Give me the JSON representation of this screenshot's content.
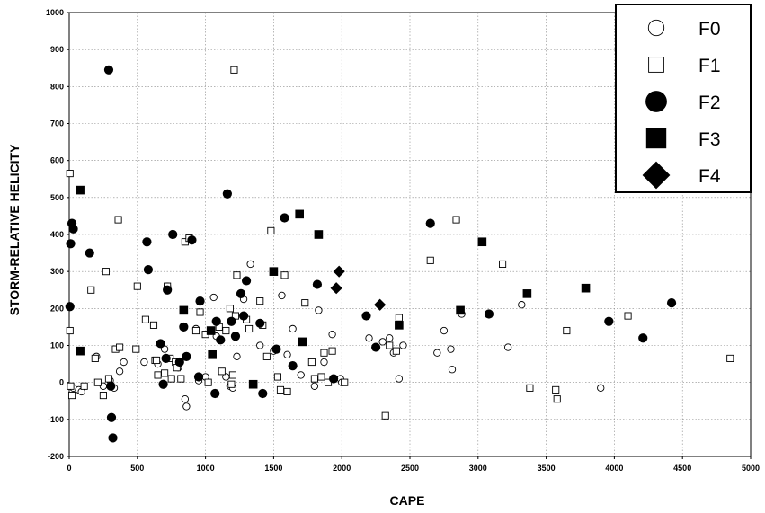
{
  "chart_data": {
    "type": "scatter",
    "title": "",
    "xlabel": "CAPE",
    "ylabel": "STORM-RELATIVE HELICITY",
    "xlim": [
      0,
      5000
    ],
    "ylim": [
      -200,
      1000
    ],
    "x_ticks": [
      0,
      500,
      1000,
      1500,
      2000,
      2500,
      3000,
      3500,
      4000,
      4500,
      5000
    ],
    "y_ticks": [
      -200,
      -100,
      0,
      100,
      200,
      300,
      400,
      500,
      600,
      700,
      800,
      900,
      1000
    ],
    "grid": true,
    "legend_position": "top-right",
    "series": [
      {
        "name": "F0",
        "marker": "open-circle",
        "points": [
          [
            30,
            -15
          ],
          [
            70,
            -20
          ],
          [
            90,
            -25
          ],
          [
            200,
            70
          ],
          [
            250,
            -10
          ],
          [
            300,
            5
          ],
          [
            330,
            -15
          ],
          [
            370,
            30
          ],
          [
            400,
            55
          ],
          [
            550,
            55
          ],
          [
            650,
            50
          ],
          [
            700,
            90
          ],
          [
            720,
            260
          ],
          [
            800,
            40
          ],
          [
            850,
            -45
          ],
          [
            860,
            -65
          ],
          [
            930,
            145
          ],
          [
            950,
            5
          ],
          [
            1000,
            15
          ],
          [
            1060,
            230
          ],
          [
            1080,
            125
          ],
          [
            1150,
            15
          ],
          [
            1180,
            -10
          ],
          [
            1200,
            -15
          ],
          [
            1230,
            70
          ],
          [
            1280,
            225
          ],
          [
            1330,
            320
          ],
          [
            1400,
            100
          ],
          [
            1500,
            85
          ],
          [
            1560,
            235
          ],
          [
            1600,
            75
          ],
          [
            1640,
            145
          ],
          [
            1700,
            20
          ],
          [
            1800,
            -10
          ],
          [
            1830,
            195
          ],
          [
            1870,
            55
          ],
          [
            1930,
            130
          ],
          [
            1990,
            10
          ],
          [
            2000,
            0
          ],
          [
            2200,
            120
          ],
          [
            2300,
            110
          ],
          [
            2350,
            120
          ],
          [
            2380,
            80
          ],
          [
            2420,
            10
          ],
          [
            2450,
            100
          ],
          [
            2700,
            80
          ],
          [
            2750,
            140
          ],
          [
            2800,
            90
          ],
          [
            2810,
            35
          ],
          [
            2880,
            185
          ],
          [
            3220,
            95
          ],
          [
            3320,
            210
          ],
          [
            3900,
            -15
          ]
        ]
      },
      {
        "name": "F1",
        "marker": "open-square",
        "points": [
          [
            5,
            565
          ],
          [
            5,
            140
          ],
          [
            10,
            -10
          ],
          [
            20,
            -35
          ],
          [
            110,
            -10
          ],
          [
            160,
            250
          ],
          [
            190,
            65
          ],
          [
            210,
            0
          ],
          [
            250,
            -35
          ],
          [
            270,
            300
          ],
          [
            290,
            10
          ],
          [
            340,
            90
          ],
          [
            360,
            440
          ],
          [
            370,
            95
          ],
          [
            490,
            90
          ],
          [
            500,
            260
          ],
          [
            560,
            170
          ],
          [
            620,
            155
          ],
          [
            630,
            60
          ],
          [
            640,
            60
          ],
          [
            650,
            20
          ],
          [
            700,
            25
          ],
          [
            720,
            260
          ],
          [
            740,
            65
          ],
          [
            750,
            10
          ],
          [
            780,
            55
          ],
          [
            790,
            40
          ],
          [
            820,
            10
          ],
          [
            850,
            380
          ],
          [
            880,
            390
          ],
          [
            930,
            140
          ],
          [
            960,
            190
          ],
          [
            1000,
            130
          ],
          [
            1020,
            0
          ],
          [
            1100,
            150
          ],
          [
            1120,
            30
          ],
          [
            1150,
            140
          ],
          [
            1180,
            200
          ],
          [
            1190,
            -5
          ],
          [
            1200,
            20
          ],
          [
            1210,
            845
          ],
          [
            1220,
            180
          ],
          [
            1230,
            290
          ],
          [
            1300,
            170
          ],
          [
            1320,
            145
          ],
          [
            1400,
            220
          ],
          [
            1420,
            155
          ],
          [
            1450,
            70
          ],
          [
            1480,
            410
          ],
          [
            1530,
            15
          ],
          [
            1550,
            -20
          ],
          [
            1580,
            290
          ],
          [
            1600,
            -25
          ],
          [
            1730,
            215
          ],
          [
            1780,
            55
          ],
          [
            1800,
            10
          ],
          [
            1850,
            15
          ],
          [
            1870,
            80
          ],
          [
            1900,
            0
          ],
          [
            1930,
            85
          ],
          [
            2020,
            0
          ],
          [
            2320,
            -90
          ],
          [
            2350,
            100
          ],
          [
            2400,
            85
          ],
          [
            2420,
            175
          ],
          [
            2650,
            330
          ],
          [
            2840,
            440
          ],
          [
            3180,
            320
          ],
          [
            3380,
            -15
          ],
          [
            3570,
            -20
          ],
          [
            3580,
            -45
          ],
          [
            3650,
            140
          ],
          [
            4100,
            180
          ],
          [
            4850,
            65
          ]
        ]
      },
      {
        "name": "F2",
        "marker": "filled-circle",
        "points": [
          [
            5,
            205
          ],
          [
            10,
            375
          ],
          [
            20,
            430
          ],
          [
            30,
            415
          ],
          [
            150,
            350
          ],
          [
            290,
            845
          ],
          [
            305,
            -10
          ],
          [
            310,
            -95
          ],
          [
            320,
            -150
          ],
          [
            570,
            380
          ],
          [
            580,
            305
          ],
          [
            670,
            105
          ],
          [
            690,
            -5
          ],
          [
            710,
            65
          ],
          [
            720,
            250
          ],
          [
            760,
            400
          ],
          [
            810,
            55
          ],
          [
            840,
            150
          ],
          [
            860,
            70
          ],
          [
            900,
            385
          ],
          [
            950,
            15
          ],
          [
            960,
            220
          ],
          [
            1070,
            -30
          ],
          [
            1080,
            165
          ],
          [
            1110,
            115
          ],
          [
            1160,
            510
          ],
          [
            1190,
            165
          ],
          [
            1220,
            125
          ],
          [
            1260,
            240
          ],
          [
            1280,
            180
          ],
          [
            1300,
            275
          ],
          [
            1400,
            160
          ],
          [
            1420,
            -30
          ],
          [
            1520,
            90
          ],
          [
            1580,
            445
          ],
          [
            1640,
            45
          ],
          [
            1820,
            265
          ],
          [
            1940,
            10
          ],
          [
            2180,
            180
          ],
          [
            2250,
            95
          ],
          [
            2650,
            430
          ],
          [
            3080,
            185
          ],
          [
            3960,
            165
          ],
          [
            4210,
            120
          ],
          [
            4420,
            215
          ]
        ]
      },
      {
        "name": "F3",
        "marker": "filled-square",
        "points": [
          [
            80,
            520
          ],
          [
            80,
            85
          ],
          [
            840,
            195
          ],
          [
            1040,
            140
          ],
          [
            1050,
            75
          ],
          [
            1350,
            -5
          ],
          [
            1500,
            300
          ],
          [
            1690,
            455
          ],
          [
            1710,
            110
          ],
          [
            1830,
            400
          ],
          [
            2420,
            155
          ],
          [
            2870,
            195
          ],
          [
            3030,
            380
          ],
          [
            3360,
            240
          ],
          [
            3790,
            255
          ]
        ]
      },
      {
        "name": "F4",
        "marker": "filled-diamond",
        "points": [
          [
            1960,
            255
          ],
          [
            1980,
            300
          ],
          [
            2280,
            210
          ]
        ]
      }
    ]
  }
}
